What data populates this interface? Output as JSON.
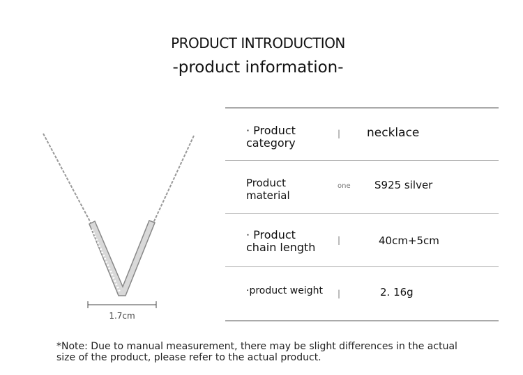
{
  "header": {
    "title": "PRODUCT INTRODUCTION",
    "subtitle": "-product information-"
  },
  "image": {
    "dimension": "1.7cm"
  },
  "table": {
    "rows": [
      {
        "label": "· Product category",
        "separator": "|",
        "value": "necklace"
      },
      {
        "label": "Product material",
        "separator": "one",
        "value": "S925 silver"
      },
      {
        "label": "· Product chain length",
        "separator": "|",
        "value": "40cm+5cm"
      },
      {
        "label": "·product weight",
        "separator": "|",
        "value": "2. 16g"
      }
    ]
  },
  "note": "*Note: Due to manual measurement, there may be slight differences in the actual size of the product, please refer to the actual product."
}
